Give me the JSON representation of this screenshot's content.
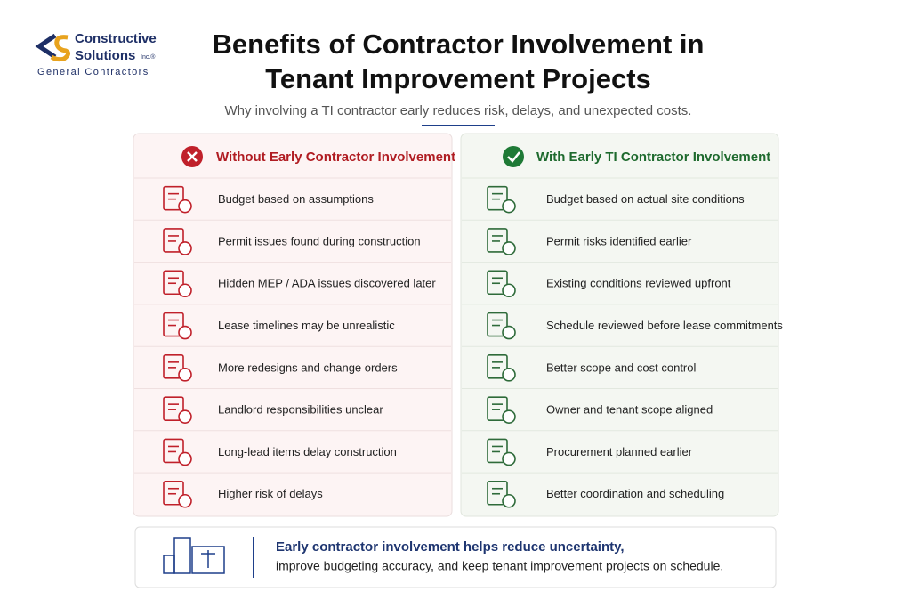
{
  "logo": {
    "name_line1": "Constructive",
    "name_line2": "Solutions",
    "suffix": "Inc.®",
    "tagline": "General Contractors"
  },
  "header": {
    "title_line1": "Benefits of Contractor Involvement in",
    "title_line2": "Tenant Improvement Projects",
    "subtitle": "Why involving a TI contractor early reduces risk, delays, and unexpected costs."
  },
  "columns": [
    {
      "heading": "Without Early Contractor Involvement",
      "items": [
        "Budget based on assumptions",
        "Permit issues found during construction",
        "Hidden MEP / ADA issues discovered later",
        "Lease timelines may be unrealistic",
        "More redesigns and change orders",
        "Landlord responsibilities unclear",
        "Long-lead items delay construction",
        "Higher risk of delays"
      ]
    },
    {
      "heading": "With Early TI Contractor Involvement",
      "items": [
        "Budget based on actual site conditions",
        "Permit risks identified earlier",
        "Existing conditions reviewed upfront",
        "Schedule reviewed before lease commitments",
        "Better scope and cost control",
        "Owner and tenant scope aligned",
        "Procurement planned earlier",
        "Better coordination and scheduling"
      ]
    }
  ],
  "footer": {
    "line1": "Early contractor involvement helps reduce uncertainty,",
    "line2": "improve budgeting accuracy, and keep tenant improvement projects on schedule."
  }
}
